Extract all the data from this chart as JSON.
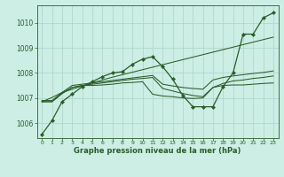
{
  "bg_color": "#cceee4",
  "line_color": "#2a5c2a",
  "grid_color": "#aad4c8",
  "xlabel": "Graphe pression niveau de la mer (hPa)",
  "xlabel_color": "#2a5c2a",
  "ylim": [
    1005.4,
    1010.7
  ],
  "xlim": [
    -0.5,
    23.5
  ],
  "yticks": [
    1006,
    1007,
    1008,
    1009,
    1010
  ],
  "xticks": [
    0,
    1,
    2,
    3,
    4,
    5,
    6,
    7,
    8,
    9,
    10,
    11,
    12,
    13,
    14,
    15,
    16,
    17,
    18,
    19,
    20,
    21,
    22,
    23
  ],
  "series": [
    {
      "y": [
        1005.55,
        1006.1,
        1006.85,
        1007.15,
        1007.45,
        1007.65,
        1007.85,
        1008.0,
        1008.05,
        1008.35,
        1008.55,
        1008.65,
        1008.25,
        1007.75,
        1007.1,
        1006.65,
        1006.65,
        1006.65,
        1007.45,
        1008.0,
        1009.55,
        1009.55,
        1010.2,
        1010.4
      ],
      "marker": true
    },
    {
      "y": [
        1006.85,
        1006.85,
        1007.18,
        1007.42,
        1007.5,
        1007.5,
        1007.52,
        1007.55,
        1007.6,
        1007.62,
        1007.65,
        1007.15,
        1007.08,
        1007.05,
        1007.0,
        1006.98,
        1007.0,
        1007.42,
        1007.5,
        1007.52,
        1007.52,
        1007.55,
        1007.58,
        1007.6
      ],
      "marker": false
    },
    {
      "y": [
        1006.85,
        1006.85,
        1007.18,
        1007.42,
        1007.5,
        1007.55,
        1007.6,
        1007.65,
        1007.7,
        1007.75,
        1007.78,
        1007.82,
        1007.38,
        1007.28,
        1007.18,
        1007.1,
        1007.05,
        1007.42,
        1007.58,
        1007.68,
        1007.72,
        1007.78,
        1007.82,
        1007.88
      ],
      "marker": false
    },
    {
      "y": [
        1006.9,
        1006.9,
        1007.22,
        1007.5,
        1007.55,
        1007.6,
        1007.65,
        1007.7,
        1007.75,
        1007.8,
        1007.85,
        1007.9,
        1007.55,
        1007.48,
        1007.42,
        1007.38,
        1007.35,
        1007.72,
        1007.82,
        1007.88,
        1007.93,
        1007.98,
        1008.02,
        1008.08
      ],
      "marker": false
    },
    {
      "y": [
        1006.85,
        1007.02,
        1007.22,
        1007.35,
        1007.48,
        1007.6,
        1007.72,
        1007.83,
        1007.93,
        1008.03,
        1008.13,
        1008.23,
        1008.33,
        1008.43,
        1008.53,
        1008.63,
        1008.73,
        1008.83,
        1008.93,
        1009.03,
        1009.13,
        1009.23,
        1009.33,
        1009.43
      ],
      "marker": false
    }
  ]
}
